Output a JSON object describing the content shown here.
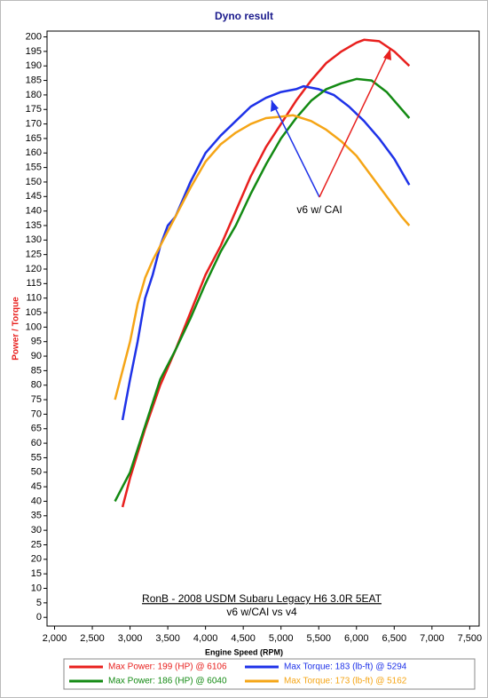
{
  "chart_data": {
    "type": "line",
    "title": "Dyno result",
    "x_label": "Engine Speed (RPM)",
    "y_label": "Power / Torque",
    "annotation": "v6 w/ CAI",
    "caption": [
      "RonB - 2008 USDM Subaru Legacy H6 3.0R 5EAT",
      "v6 w/CAI vs v4"
    ],
    "xlim": [
      1900,
      7625
    ],
    "ylim": [
      -3,
      202
    ],
    "grid": false,
    "xticks": [
      {
        "value": 2000,
        "label": "2,000"
      },
      {
        "value": 2500,
        "label": "2,500"
      },
      {
        "value": 3000,
        "label": "3,000"
      },
      {
        "value": 3500,
        "label": "3,500"
      },
      {
        "value": 4000,
        "label": "4,000"
      },
      {
        "value": 4500,
        "label": "4,500"
      },
      {
        "value": 5000,
        "label": "5,000"
      },
      {
        "value": 5500,
        "label": "5,500"
      },
      {
        "value": 6000,
        "label": "6,000"
      },
      {
        "value": 6500,
        "label": "6,500"
      },
      {
        "value": 7000,
        "label": "7,000"
      },
      {
        "value": 7500,
        "label": "7,500"
      }
    ],
    "yticks": [
      0,
      5,
      10,
      15,
      20,
      25,
      30,
      35,
      40,
      45,
      50,
      55,
      60,
      65,
      70,
      75,
      80,
      85,
      90,
      95,
      100,
      105,
      110,
      115,
      120,
      125,
      130,
      135,
      140,
      145,
      150,
      155,
      160,
      165,
      170,
      175,
      180,
      185,
      190,
      195,
      200
    ],
    "series": [
      {
        "name": "Max Power: 199 (HP) @ 6106",
        "color": "#e8201e",
        "x": [
          2900,
          3000,
          3200,
          3400,
          3600,
          3800,
          4000,
          4200,
          4400,
          4600,
          4800,
          5000,
          5200,
          5400,
          5600,
          5800,
          6000,
          6100,
          6300,
          6500,
          6700
        ],
        "values": [
          38,
          48,
          65,
          80,
          92,
          105,
          118,
          128,
          140,
          152,
          162,
          170,
          178,
          185,
          191,
          195,
          198,
          199,
          198.5,
          195,
          190
        ]
      },
      {
        "name": "Max Torque: 183 (lb-ft) @ 5294",
        "color": "#1e32e8",
        "x": [
          2900,
          2950,
          3000,
          3100,
          3200,
          3300,
          3400,
          3500,
          3600,
          3800,
          4000,
          4200,
          4400,
          4600,
          4800,
          5000,
          5200,
          5300,
          5500,
          5700,
          5900,
          6100,
          6300,
          6500,
          6700
        ],
        "values": [
          68,
          75,
          82,
          95,
          110,
          118,
          128,
          135,
          138,
          150,
          160,
          166,
          171,
          176,
          179,
          181,
          182,
          183,
          182,
          180,
          176,
          171,
          165,
          158,
          149
        ]
      },
      {
        "name": "Max Power: 186 (HP) @ 6040",
        "color": "#138a13",
        "x": [
          2800,
          3000,
          3200,
          3400,
          3600,
          3800,
          4000,
          4200,
          4400,
          4600,
          4800,
          5000,
          5200,
          5400,
          5600,
          5800,
          6000,
          6200,
          6400,
          6600,
          6700
        ],
        "values": [
          40,
          50,
          66,
          82,
          92,
          103,
          115,
          126,
          135,
          146,
          156,
          165,
          172,
          178,
          182,
          184,
          185.5,
          185,
          181,
          175,
          172
        ]
      },
      {
        "name": "Max Torque: 173 (lb-ft) @ 5162",
        "color": "#f5a516",
        "x": [
          2800,
          2900,
          3000,
          3100,
          3200,
          3300,
          3400,
          3600,
          3800,
          4000,
          4200,
          4400,
          4600,
          4800,
          5000,
          5160,
          5400,
          5600,
          5800,
          6000,
          6200,
          6400,
          6600,
          6700
        ],
        "values": [
          75,
          85,
          95,
          108,
          117,
          123,
          128,
          138,
          148,
          157,
          163,
          167,
          170,
          172,
          172.5,
          173,
          171,
          168,
          164,
          159,
          152,
          145,
          138,
          135
        ]
      }
    ]
  }
}
